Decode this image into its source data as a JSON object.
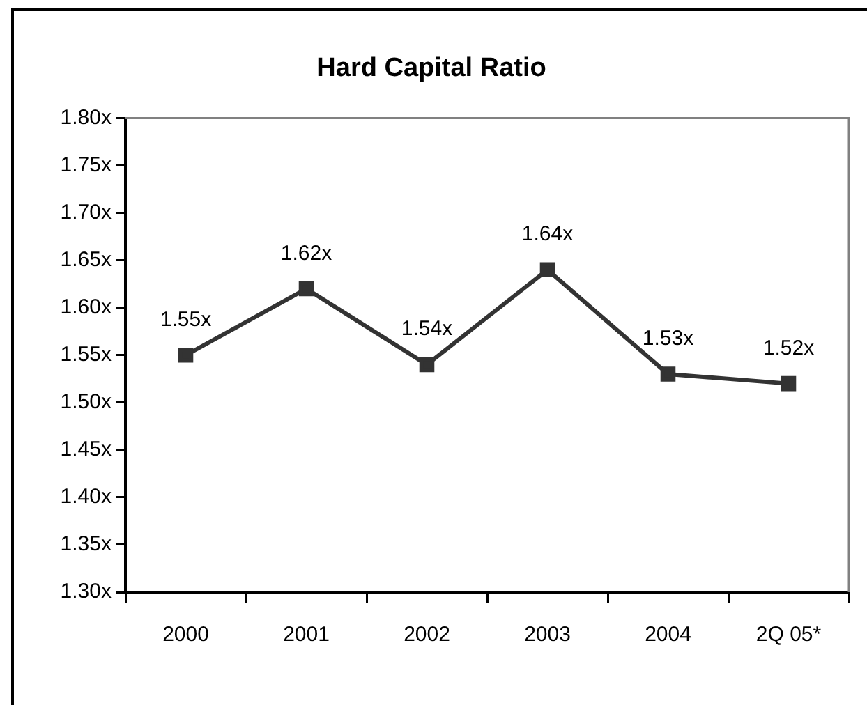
{
  "chart_data": {
    "type": "line",
    "title": "Hard Capital Ratio",
    "categories": [
      "2000",
      "2001",
      "2002",
      "2003",
      "2004",
      "2Q 05*"
    ],
    "series": [
      {
        "color": "#333333",
        "values": [
          1.55,
          1.62,
          1.54,
          1.64,
          1.53,
          1.52
        ],
        "value_labels": [
          "1.55x",
          "1.62x",
          "1.54x",
          "1.64x",
          "1.53x",
          "1.52x"
        ]
      }
    ],
    "ylim": [
      1.3,
      1.8
    ],
    "yticks": [
      {
        "value": 1.3,
        "label": "1.30x"
      },
      {
        "value": 1.35,
        "label": "1.35x"
      },
      {
        "value": 1.4,
        "label": "1.40x"
      },
      {
        "value": 1.45,
        "label": "1.45x"
      },
      {
        "value": 1.5,
        "label": "1.50x"
      },
      {
        "value": 1.55,
        "label": "1.55x"
      },
      {
        "value": 1.6,
        "label": "1.60x"
      },
      {
        "value": 1.65,
        "label": "1.65x"
      },
      {
        "value": 1.7,
        "label": "1.70x"
      },
      {
        "value": 1.75,
        "label": "1.75x"
      },
      {
        "value": 1.8,
        "label": "1.80x"
      }
    ],
    "grid": false,
    "legend": false,
    "marker": "square",
    "line_style": "solid"
  }
}
